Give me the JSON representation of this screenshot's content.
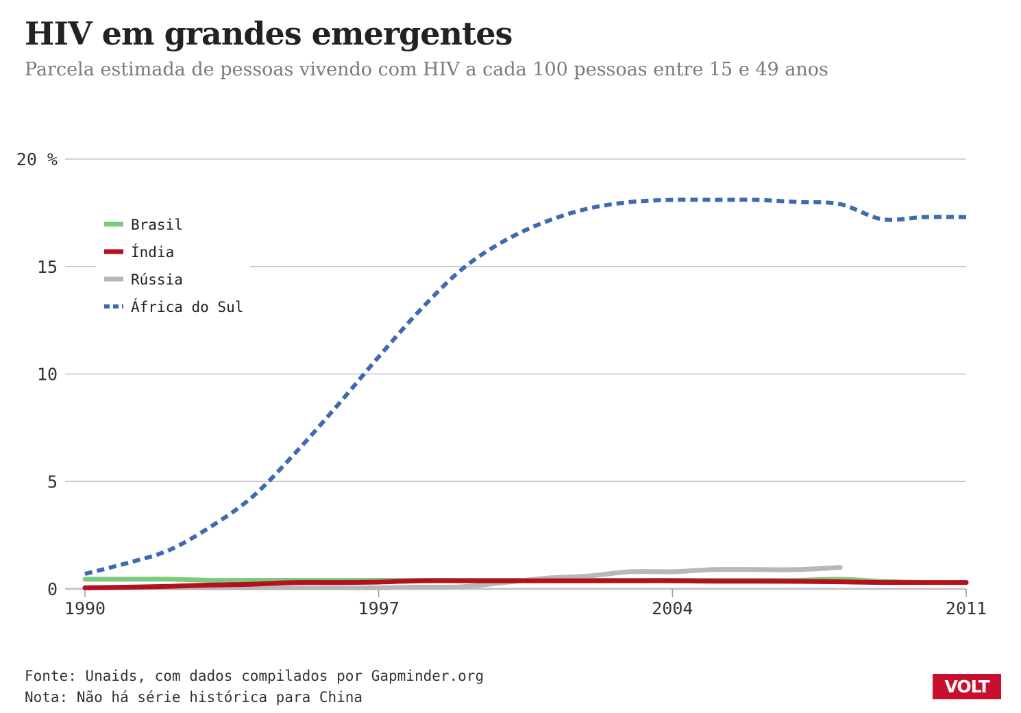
{
  "title": "HIV em grandes emergentes",
  "subtitle": "Parcela estimada de pessoas vivendo com HIV a cada 100 pessoas entre 15 e 49 anos",
  "footer": {
    "source": "Fonte: Unaids, com dados compilados por Gapminder.org",
    "note": "Nota: Não há série histórica para China"
  },
  "logo": "VOLT",
  "chart_data": {
    "type": "line",
    "x": [
      1990,
      1991,
      1992,
      1993,
      1994,
      1995,
      1996,
      1997,
      1998,
      1999,
      2000,
      2001,
      2002,
      2003,
      2004,
      2005,
      2006,
      2007,
      2008,
      2009,
      2010,
      2011
    ],
    "xticks": [
      "1990",
      "1997",
      "2004",
      "2011"
    ],
    "yticks": [
      "0",
      "5",
      "10",
      "15",
      "20 %"
    ],
    "ylim": [
      0,
      20
    ],
    "xlim": [
      1990,
      2011
    ],
    "legend_position": "top-left",
    "series": [
      {
        "name": "Brasil",
        "color": "#7dc97d",
        "style": "solid",
        "values": [
          0.45,
          0.45,
          0.45,
          0.4,
          0.4,
          0.4,
          0.4,
          0.4,
          0.4,
          0.4,
          0.4,
          0.4,
          0.4,
          0.4,
          0.4,
          0.4,
          0.4,
          0.4,
          0.45,
          0.35,
          0.3,
          0.3
        ]
      },
      {
        "name": "Índia",
        "color": "#b5101d",
        "style": "solid",
        "values": [
          0.05,
          0.08,
          0.12,
          0.18,
          0.22,
          0.3,
          0.3,
          0.32,
          0.38,
          0.38,
          0.38,
          0.38,
          0.38,
          0.38,
          0.38,
          0.36,
          0.36,
          0.35,
          0.33,
          0.3,
          0.3,
          0.3
        ]
      },
      {
        "name": "Rússia",
        "color": "#b8b8b8",
        "style": "solid",
        "values": [
          0.05,
          0.05,
          0.05,
          0.05,
          0.05,
          0.05,
          0.05,
          0.05,
          0.08,
          0.1,
          0.3,
          0.5,
          0.6,
          0.8,
          0.8,
          0.9,
          0.9,
          0.9,
          1.0,
          null,
          null,
          null
        ]
      },
      {
        "name": "África do Sul",
        "color": "#3e6bb0",
        "style": "dotted",
        "values": [
          0.7,
          1.2,
          1.8,
          2.9,
          4.3,
          6.3,
          8.5,
          10.8,
          13.0,
          14.9,
          16.2,
          17.1,
          17.7,
          18.0,
          18.1,
          18.1,
          18.1,
          18.0,
          17.9,
          17.2,
          17.3,
          17.3
        ]
      }
    ]
  }
}
